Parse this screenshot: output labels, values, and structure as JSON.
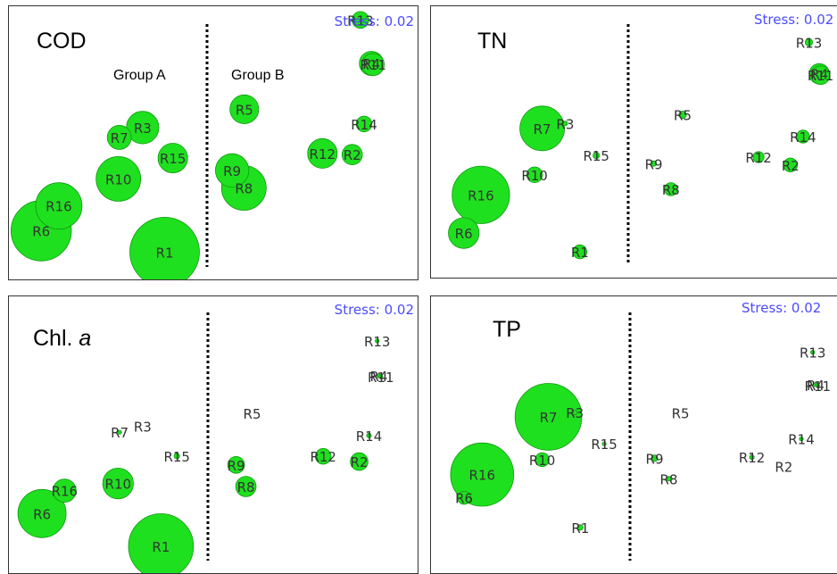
{
  "colors": {
    "bubble_fill": "#1fe01f",
    "bubble_stroke": "#119911",
    "divider": "#000000",
    "stress_text": "#4b4bff",
    "label_text": "#333333"
  },
  "chart_data": [
    {
      "type": "scatter",
      "title": "COD",
      "stress_label": "Stress: 0.02",
      "group_labels": [
        "Group A",
        "Group B"
      ],
      "grid": false,
      "points": [
        {
          "label": "R13",
          "x": 0.86,
          "y": 0.95,
          "size": 0.18
        },
        {
          "label": "R4",
          "x": 0.887,
          "y": 0.791,
          "size": 0.26
        },
        {
          "label": "R11",
          "x": 0.891,
          "y": 0.787,
          "size": 0.24
        },
        {
          "label": "R5",
          "x": 0.576,
          "y": 0.623,
          "size": 0.31
        },
        {
          "label": "R14",
          "x": 0.869,
          "y": 0.569,
          "size": 0.17
        },
        {
          "label": "R3",
          "x": 0.327,
          "y": 0.556,
          "size": 0.35
        },
        {
          "label": "R7",
          "x": 0.27,
          "y": 0.52,
          "size": 0.26
        },
        {
          "label": "R12",
          "x": 0.767,
          "y": 0.461,
          "size": 0.32
        },
        {
          "label": "R2",
          "x": 0.84,
          "y": 0.457,
          "size": 0.22
        },
        {
          "label": "R15",
          "x": 0.401,
          "y": 0.444,
          "size": 0.32
        },
        {
          "label": "R9",
          "x": 0.546,
          "y": 0.399,
          "size": 0.36
        },
        {
          "label": "R8",
          "x": 0.575,
          "y": 0.335,
          "size": 0.48
        },
        {
          "label": "R10",
          "x": 0.268,
          "y": 0.368,
          "size": 0.48
        },
        {
          "label": "R16",
          "x": 0.122,
          "y": 0.269,
          "size": 0.5
        },
        {
          "label": "R6",
          "x": 0.079,
          "y": 0.178,
          "size": 0.65
        },
        {
          "label": "R1",
          "x": 0.381,
          "y": 0.1,
          "size": 0.75
        }
      ]
    },
    {
      "type": "scatter",
      "title": "TN",
      "stress_label": "Stress: 0.02",
      "grid": false,
      "points": [
        {
          "label": "R13",
          "x": 0.901,
          "y": 0.867,
          "size": 0.08
        },
        {
          "label": "R4",
          "x": 0.926,
          "y": 0.751,
          "size": 0.22
        },
        {
          "label": "R11",
          "x": 0.929,
          "y": 0.746,
          "size": 0.2
        },
        {
          "label": "R5",
          "x": 0.6,
          "y": 0.6,
          "size": 0.08
        },
        {
          "label": "R7",
          "x": 0.265,
          "y": 0.55,
          "size": 0.48
        },
        {
          "label": "R3",
          "x": 0.32,
          "y": 0.568,
          "size": 0.05
        },
        {
          "label": "R14",
          "x": 0.887,
          "y": 0.52,
          "size": 0.14
        },
        {
          "label": "R15",
          "x": 0.394,
          "y": 0.45,
          "size": 0.07
        },
        {
          "label": "R12",
          "x": 0.781,
          "y": 0.444,
          "size": 0.12
        },
        {
          "label": "R2",
          "x": 0.857,
          "y": 0.415,
          "size": 0.15
        },
        {
          "label": "R9",
          "x": 0.531,
          "y": 0.42,
          "size": 0.06
        },
        {
          "label": "R10",
          "x": 0.247,
          "y": 0.379,
          "size": 0.17
        },
        {
          "label": "R8",
          "x": 0.572,
          "y": 0.326,
          "size": 0.14
        },
        {
          "label": "R16",
          "x": 0.119,
          "y": 0.305,
          "size": 0.62
        },
        {
          "label": "R6",
          "x": 0.078,
          "y": 0.164,
          "size": 0.33
        },
        {
          "label": "R1",
          "x": 0.355,
          "y": 0.095,
          "size": 0.15
        }
      ]
    },
    {
      "type": "scatter",
      "title": "Chl. a",
      "stress_label": "Stress: 0.02",
      "grid": false,
      "points": [
        {
          "label": "R13",
          "x": 0.901,
          "y": 0.839,
          "size": 0.04
        },
        {
          "label": "R4",
          "x": 0.905,
          "y": 0.713,
          "size": 0.04
        },
        {
          "label": "R11",
          "x": 0.91,
          "y": 0.709,
          "size": 0.04
        },
        {
          "label": "R5",
          "x": 0.595,
          "y": 0.578,
          "size": 0.0
        },
        {
          "label": "R7",
          "x": 0.271,
          "y": 0.509,
          "size": 0.04
        },
        {
          "label": "R3",
          "x": 0.327,
          "y": 0.53,
          "size": 0.0
        },
        {
          "label": "R14",
          "x": 0.881,
          "y": 0.497,
          "size": 0.05
        },
        {
          "label": "R15",
          "x": 0.411,
          "y": 0.423,
          "size": 0.06
        },
        {
          "label": "R12",
          "x": 0.769,
          "y": 0.422,
          "size": 0.17
        },
        {
          "label": "R2",
          "x": 0.857,
          "y": 0.403,
          "size": 0.19
        },
        {
          "label": "R9",
          "x": 0.556,
          "y": 0.391,
          "size": 0.18
        },
        {
          "label": "R10",
          "x": 0.267,
          "y": 0.324,
          "size": 0.33
        },
        {
          "label": "R8",
          "x": 0.58,
          "y": 0.313,
          "size": 0.22
        },
        {
          "label": "R16",
          "x": 0.136,
          "y": 0.298,
          "size": 0.25
        },
        {
          "label": "R6",
          "x": 0.081,
          "y": 0.215,
          "size": 0.52
        },
        {
          "label": "R1",
          "x": 0.372,
          "y": 0.097,
          "size": 0.7
        }
      ]
    },
    {
      "type": "scatter",
      "title": "TP",
      "stress_label": "Stress: 0.02",
      "grid": false,
      "points": [
        {
          "label": "R13",
          "x": 0.91,
          "y": 0.798,
          "size": 0.03
        },
        {
          "label": "R4",
          "x": 0.917,
          "y": 0.681,
          "size": 0.03
        },
        {
          "label": "R11",
          "x": 0.922,
          "y": 0.678,
          "size": 0.03
        },
        {
          "label": "R5",
          "x": 0.595,
          "y": 0.579,
          "size": 0.0
        },
        {
          "label": "R7",
          "x": 0.28,
          "y": 0.565,
          "size": 0.72
        },
        {
          "label": "R3",
          "x": 0.343,
          "y": 0.58,
          "size": 0.05
        },
        {
          "label": "R14",
          "x": 0.883,
          "y": 0.485,
          "size": 0.03
        },
        {
          "label": "R15",
          "x": 0.413,
          "y": 0.467,
          "size": 0.04
        },
        {
          "label": "R12",
          "x": 0.765,
          "y": 0.419,
          "size": 0.05
        },
        {
          "label": "R2",
          "x": 0.841,
          "y": 0.386,
          "size": 0.0
        },
        {
          "label": "R9",
          "x": 0.533,
          "y": 0.415,
          "size": 0.07
        },
        {
          "label": "R10",
          "x": 0.265,
          "y": 0.41,
          "size": 0.15
        },
        {
          "label": "R8",
          "x": 0.567,
          "y": 0.341,
          "size": 0.05
        },
        {
          "label": "R16",
          "x": 0.122,
          "y": 0.356,
          "size": 0.68
        },
        {
          "label": "R6",
          "x": 0.079,
          "y": 0.272,
          "size": 0.14
        },
        {
          "label": "R1",
          "x": 0.356,
          "y": 0.165,
          "size": 0.06
        }
      ]
    }
  ]
}
